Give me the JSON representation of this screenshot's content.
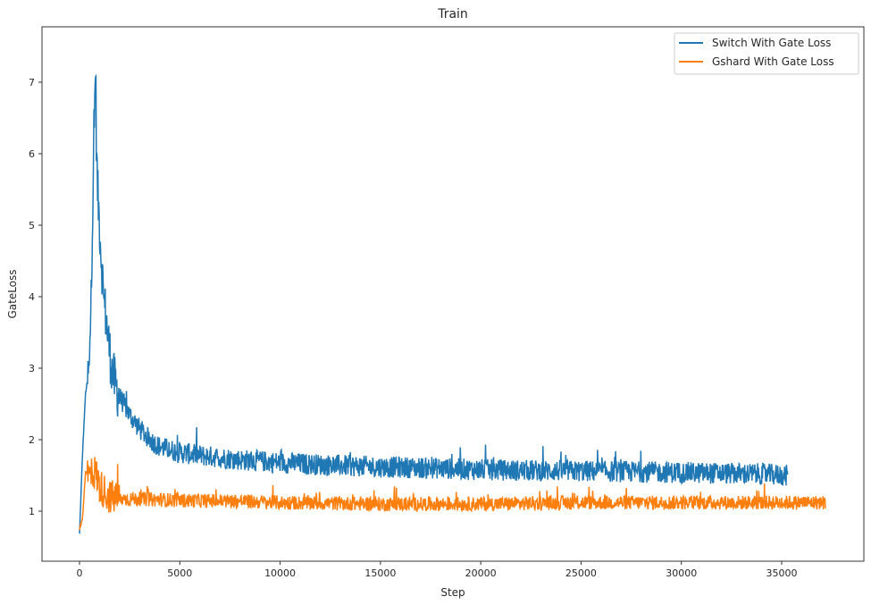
{
  "chart_data": {
    "type": "line",
    "title": "Train",
    "xlabel": "Step",
    "ylabel": "GateLoss",
    "xlim": [
      -1900,
      38800
    ],
    "ylim": [
      0.32,
      7.78
    ],
    "xticks": [
      0,
      5000,
      10000,
      15000,
      20000,
      25000,
      30000,
      35000
    ],
    "xtick_labels": [
      "0",
      "5000",
      "10000",
      "15000",
      "20000",
      "25000",
      "30000",
      "35000"
    ],
    "yticks": [
      1,
      2,
      3,
      4,
      5,
      6,
      7
    ],
    "ytick_labels": [
      "1",
      "2",
      "3",
      "4",
      "5",
      "6",
      "7"
    ],
    "grid": false,
    "legend_position": "upper right",
    "series": [
      {
        "name": "Switch With Gate Loss",
        "color": "#1f77b4",
        "x": [
          0,
          150,
          300,
          500,
          700,
          800,
          850,
          900,
          1000,
          1100,
          1200,
          1400,
          1600,
          1800,
          2000,
          2500,
          3000,
          3500,
          4000,
          5000,
          6000,
          7000,
          8000,
          10000,
          12000,
          15000,
          18000,
          20000,
          22000,
          25000,
          28000,
          30000,
          32000,
          34000,
          35300
        ],
        "values": [
          0.68,
          1.8,
          2.65,
          3.0,
          5.8,
          7.3,
          6.0,
          5.5,
          5.0,
          4.5,
          4.0,
          3.5,
          3.0,
          2.75,
          2.6,
          2.35,
          2.15,
          2.0,
          1.9,
          1.82,
          1.78,
          1.75,
          1.72,
          1.68,
          1.65,
          1.62,
          1.6,
          1.58,
          1.57,
          1.56,
          1.55,
          1.54,
          1.53,
          1.52,
          1.5
        ],
        "noise_amplitude": 0.15
      },
      {
        "name": "Gshard With Gate Loss",
        "color": "#ff7f0e",
        "x": [
          0,
          150,
          300,
          500,
          800,
          1000,
          1500,
          2000,
          3000,
          5000,
          8000,
          10000,
          15000,
          20000,
          25000,
          30000,
          35000,
          37200
        ],
        "values": [
          0.75,
          0.9,
          1.55,
          1.5,
          1.55,
          1.35,
          1.2,
          1.17,
          1.17,
          1.15,
          1.14,
          1.12,
          1.1,
          1.1,
          1.12,
          1.12,
          1.12,
          1.12
        ],
        "noise_amplitude": 0.1
      }
    ]
  },
  "title": "Train",
  "xlabel": "Step",
  "ylabel": "GateLoss",
  "legend": [
    {
      "label": "Switch With Gate Loss",
      "color": "#1f77b4"
    },
    {
      "label": "Gshard With Gate Loss",
      "color": "#ff7f0e"
    }
  ]
}
